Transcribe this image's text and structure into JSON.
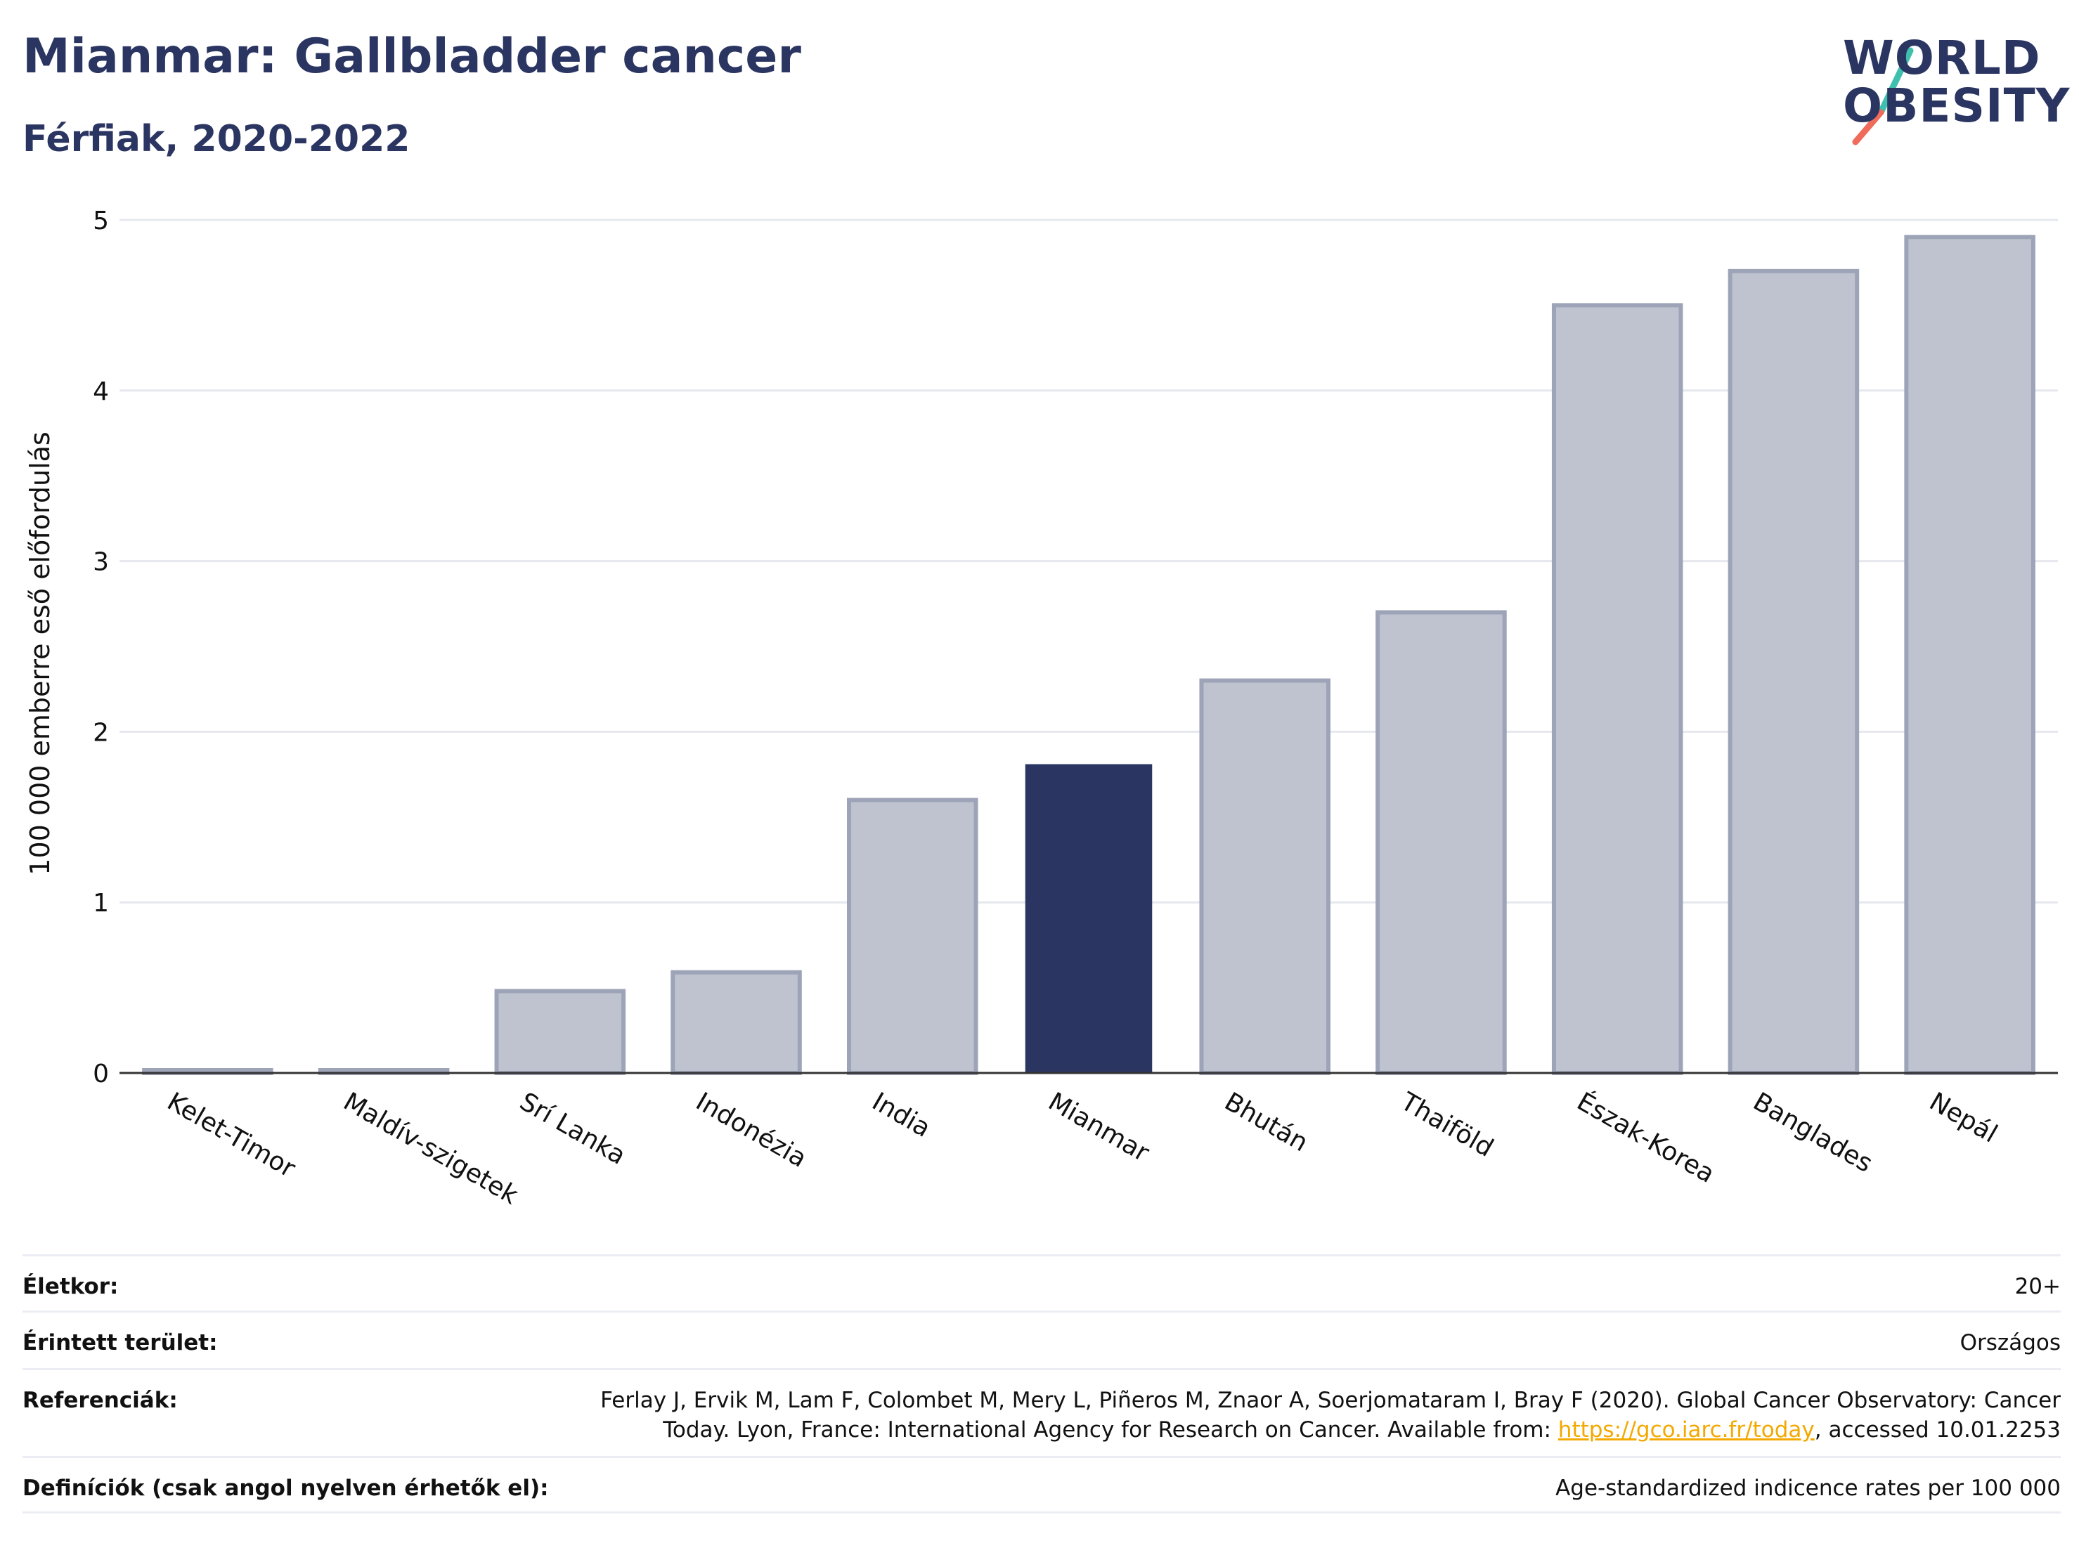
{
  "title": "Mianmar: Gallbladder cancer",
  "subtitle": "Férfiak, 2020-2022",
  "logo": {
    "line1": "WORLD",
    "line2": "OBESITY"
  },
  "colors": {
    "highlight": "#2b3562",
    "bar": "#bfc3cf",
    "bar_stroke": "#9ea4b8",
    "title": "#2b3562",
    "link": "#f2a900"
  },
  "chart_data": {
    "type": "bar",
    "categories": [
      "Kelet-Timor",
      "Maldív-szigetek",
      "Srí Lanka",
      "Indonézia",
      "India",
      "Mianmar",
      "Bhután",
      "Thaiföld",
      "Észak-Korea",
      "Banglades",
      "Nepál"
    ],
    "values": [
      0,
      0,
      0.48,
      0.59,
      1.6,
      1.81,
      2.3,
      2.7,
      4.5,
      4.7,
      4.9
    ],
    "highlight": "Mianmar",
    "ylabel": "100 000 emberre eső előfordulás",
    "xlabel": "",
    "ylim": [
      0,
      5
    ],
    "yticks": [
      0,
      1,
      2,
      3,
      4,
      5
    ],
    "grid": true
  },
  "meta": {
    "age_label": "Életkor:",
    "age_value": "20+",
    "area_label": "Érintett terület:",
    "area_value": "Országos",
    "ref_label": "Referenciák:",
    "ref_text_1": "Ferlay J, Ervik M, Lam F, Colombet M, Mery L, Piñeros M, Znaor A, Soerjomataram I, Bray F (2020). Global Cancer Observatory: Cancer",
    "ref_text_2": "Today. Lyon, France: International Agency for Research on Cancer. Available from: ",
    "ref_link": "https://gco.iarc.fr/today",
    "ref_text_3": ", accessed 10.01.2253",
    "def_label": "Definíciók (csak angol nyelven érhetők el):",
    "def_value": "Age-standardized indicence rates per 100 000"
  }
}
